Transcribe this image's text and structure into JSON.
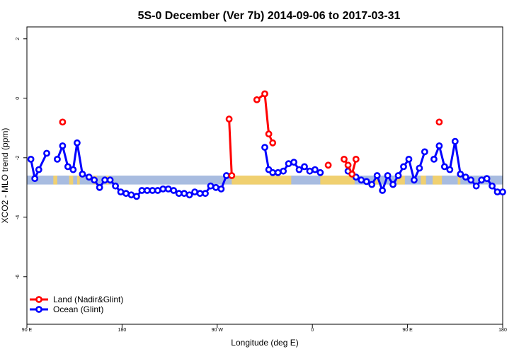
{
  "chart_data": {
    "type": "line",
    "title": "5S-0 December (Ver 7b)   2014-09-06 to 2017-03-31",
    "xlabel": "Longitude (deg E)",
    "ylabel": "XCO2 - MLO trend (ppm)",
    "xlim": [
      90,
      450
    ],
    "ylim": [
      -7.6,
      2.4
    ],
    "x_ticks": [
      {
        "value": 90,
        "label": "90 E"
      },
      {
        "value": 162,
        "label": "180"
      },
      {
        "value": 234,
        "label": "90 W"
      },
      {
        "value": 306,
        "label": "0"
      },
      {
        "value": 378,
        "label": "90 E"
      },
      {
        "value": 450,
        "label": "180"
      }
    ],
    "y_ticks": [
      2,
      0,
      -2,
      -4,
      -6
    ],
    "grid": false,
    "legend_position": "bottom-left",
    "surface_band": {
      "y_range": [
        -2.9,
        -2.6
      ],
      "ocean_color": "#a8bce0",
      "land_color": "#f0d070"
    },
    "series": [
      {
        "name": "Land (Nadir&Glint)",
        "color": "#ff0000",
        "segments": [
          [
            [
              117,
              -0.8
            ]
          ],
          [
            [
              243,
              -0.7
            ],
            [
              245,
              -2.6
            ]
          ],
          [
            [
              264,
              -0.05
            ],
            [
              270,
              0.15
            ],
            [
              273,
              -1.2
            ],
            [
              276,
              -1.5
            ]
          ],
          [
            [
              318,
              -2.25
            ]
          ],
          [
            [
              330,
              -2.05
            ],
            [
              333,
              -2.25
            ],
            [
              336,
              -2.55
            ],
            [
              339,
              -2.05
            ]
          ],
          [
            [
              402,
              -0.8
            ]
          ]
        ]
      },
      {
        "name": "Ocean (Glint)",
        "color": "#0000ff",
        "segments": [
          [
            [
              93,
              -2.05
            ],
            [
              96,
              -2.7
            ],
            [
              99,
              -2.4
            ],
            [
              105,
              -1.85
            ]
          ],
          [
            [
              113,
              -2.05
            ],
            [
              117,
              -1.6
            ],
            [
              121,
              -2.3
            ],
            [
              125,
              -2.4
            ],
            [
              128,
              -1.5
            ],
            [
              132,
              -2.55
            ],
            [
              137,
              -2.65
            ],
            [
              141,
              -2.75
            ],
            [
              145,
              -3.0
            ],
            [
              149,
              -2.75
            ],
            [
              153,
              -2.75
            ],
            [
              157,
              -2.95
            ],
            [
              161,
              -3.15
            ],
            [
              165,
              -3.2
            ],
            [
              169,
              -3.25
            ],
            [
              173,
              -3.3
            ],
            [
              177,
              -3.1
            ],
            [
              181,
              -3.1
            ],
            [
              185,
              -3.1
            ],
            [
              189,
              -3.1
            ],
            [
              193,
              -3.05
            ],
            [
              197,
              -3.05
            ],
            [
              201,
              -3.1
            ],
            [
              205,
              -3.2
            ],
            [
              209,
              -3.2
            ],
            [
              213,
              -3.25
            ],
            [
              217,
              -3.15
            ],
            [
              221,
              -3.2
            ],
            [
              225,
              -3.2
            ],
            [
              229,
              -2.95
            ],
            [
              233,
              -3.0
            ],
            [
              237,
              -3.05
            ],
            [
              241,
              -2.6
            ]
          ],
          [
            [
              270,
              -1.65
            ],
            [
              273,
              -2.4
            ],
            [
              276,
              -2.5
            ],
            [
              280,
              -2.5
            ],
            [
              284,
              -2.45
            ],
            [
              288,
              -2.2
            ],
            [
              292,
              -2.15
            ],
            [
              296,
              -2.4
            ],
            [
              300,
              -2.3
            ],
            [
              304,
              -2.45
            ],
            [
              308,
              -2.4
            ],
            [
              312,
              -2.5
            ]
          ],
          [
            [
              333,
              -2.45
            ],
            [
              339,
              -2.65
            ],
            [
              343,
              -2.75
            ],
            [
              347,
              -2.8
            ],
            [
              351,
              -2.9
            ],
            [
              355,
              -2.6
            ],
            [
              359,
              -3.1
            ],
            [
              363,
              -2.6
            ],
            [
              367,
              -2.9
            ],
            [
              371,
              -2.6
            ],
            [
              375,
              -2.3
            ],
            [
              379,
              -2.05
            ],
            [
              383,
              -2.75
            ],
            [
              387,
              -2.35
            ],
            [
              391,
              -1.8
            ]
          ],
          [
            [
              398,
              -2.05
            ],
            [
              402,
              -1.6
            ],
            [
              406,
              -2.3
            ],
            [
              410,
              -2.4
            ],
            [
              414,
              -1.45
            ],
            [
              418,
              -2.55
            ],
            [
              422,
              -2.65
            ],
            [
              426,
              -2.75
            ],
            [
              430,
              -2.95
            ],
            [
              434,
              -2.75
            ],
            [
              438,
              -2.7
            ],
            [
              442,
              -2.95
            ],
            [
              446,
              -3.15
            ],
            [
              450,
              -3.15
            ]
          ]
        ]
      }
    ]
  }
}
